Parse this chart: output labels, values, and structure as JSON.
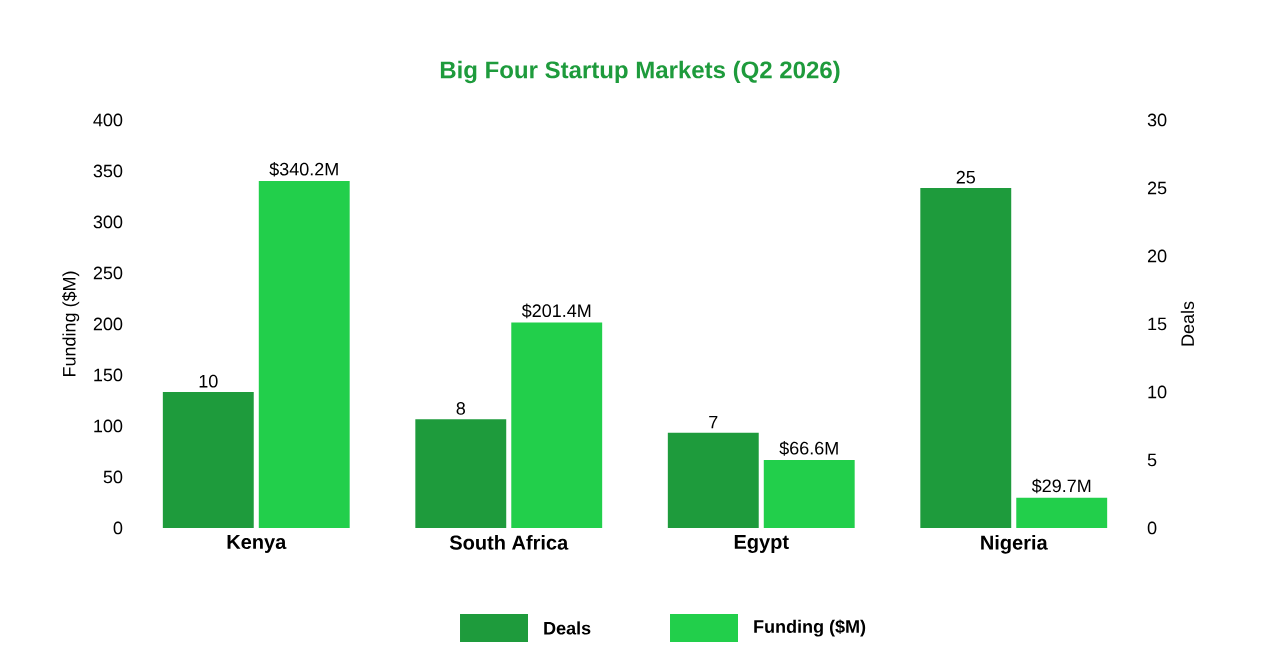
{
  "chart_data": {
    "type": "bar",
    "title": "Big Four Startup Markets (Q2 2026)",
    "categories": [
      "Kenya",
      "South Africa",
      "Egypt",
      "Nigeria"
    ],
    "series": [
      {
        "name": "Deals",
        "color": "#1e9b3c",
        "axis": "y2",
        "values": [
          10,
          8,
          7,
          25
        ],
        "value_labels": [
          "10",
          "8",
          "7",
          "25"
        ]
      },
      {
        "name": "Funding ($M)",
        "color": "#22cf4b",
        "values": [
          340.2,
          201.4,
          66.6,
          29.7
        ],
        "value_labels": [
          "$340.2M",
          "$201.4M",
          "$66.6M",
          "$29.7M"
        ]
      }
    ],
    "ylabel": "Funding ($M)",
    "y2label": "Deals",
    "ylim": [
      0,
      400
    ],
    "yticks": [
      0,
      50,
      100,
      150,
      200,
      250,
      300,
      350,
      400
    ],
    "y2lim": [
      0,
      30
    ],
    "y2ticks": [
      0,
      5,
      10,
      15,
      20,
      25,
      30
    ],
    "legend": "bottom",
    "grid": false
  }
}
